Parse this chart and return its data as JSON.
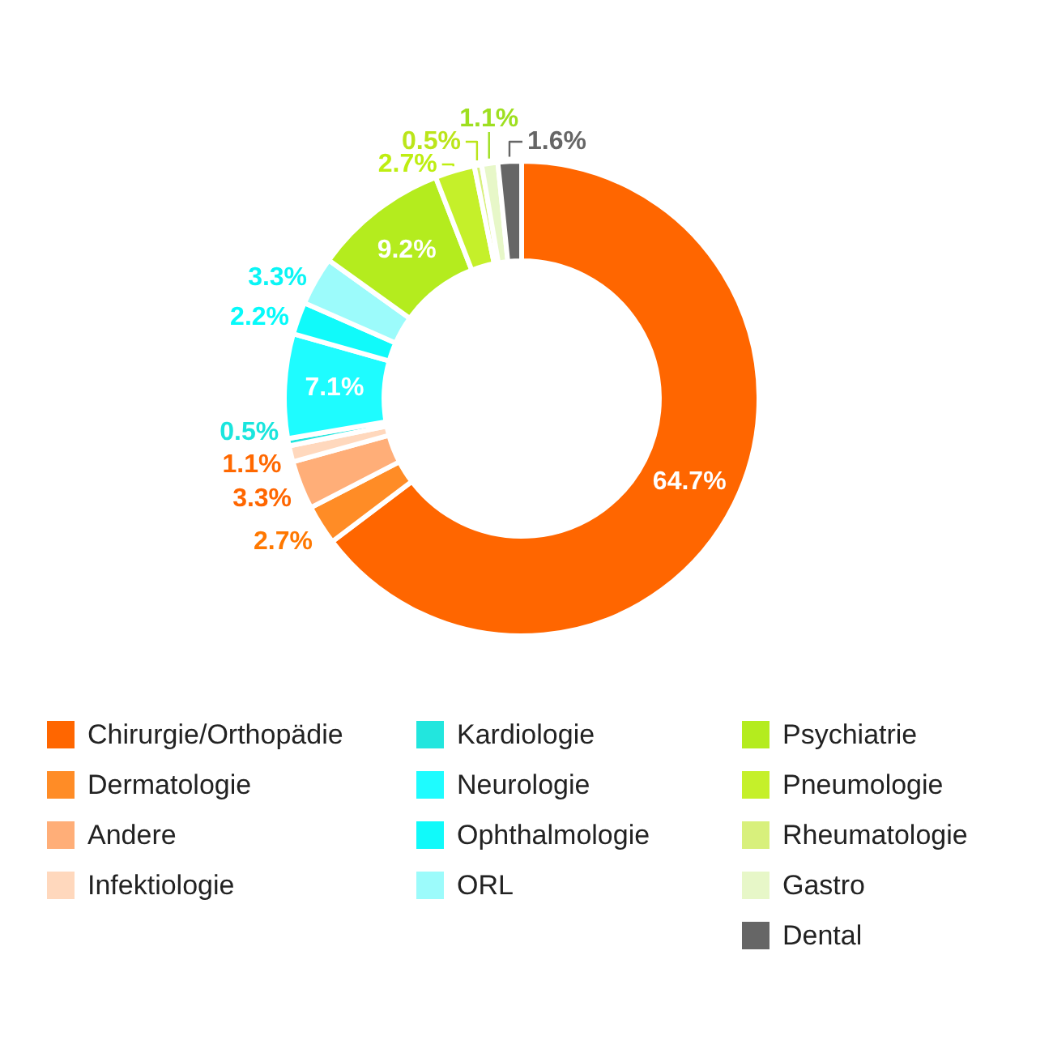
{
  "chart_data": {
    "type": "donut",
    "categories": [
      "Chirurgie/Orthopädie",
      "Dermatologie",
      "Andere",
      "Infektiologie",
      "Kardiologie",
      "Neurologie",
      "Ophthalmologie",
      "ORL",
      "Psychiatrie",
      "Pneumologie",
      "Rheumatologie",
      "Gastro",
      "Dental"
    ],
    "values": [
      64.7,
      2.7,
      3.3,
      1.1,
      0.5,
      7.1,
      2.2,
      3.3,
      9.2,
      2.7,
      0.5,
      1.1,
      1.6
    ],
    "colors": [
      "#ff6600",
      "#ff8c26",
      "#ffae78",
      "#ffd8bd",
      "#22e6de",
      "#1efcff",
      "#10fafa",
      "#9cfbfb",
      "#b4ec1e",
      "#c5f02a",
      "#d8f07c",
      "#e7f7c8",
      "#666666"
    ],
    "value_labels": [
      "64.7%",
      "2.7%",
      "3.3%",
      "1.1%",
      "0.5%",
      "7.1%",
      "2.2%",
      "3.3%",
      "9.2%",
      "2.7%",
      "0.5%",
      "1.1%",
      "1.6%"
    ],
    "legend": "bottom"
  }
}
